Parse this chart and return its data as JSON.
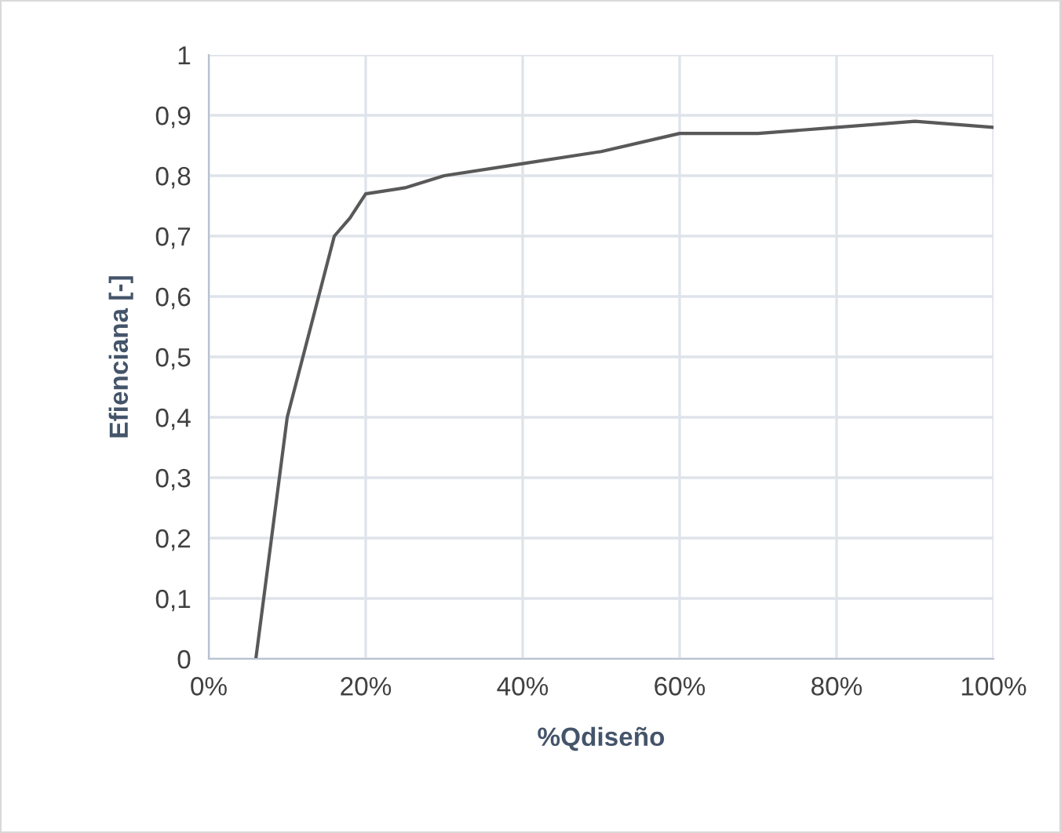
{
  "chart_data": {
    "type": "line",
    "xlabel": "%Qdiseño",
    "ylabel": "Efienciana [-]",
    "x": [
      6,
      10,
      13,
      16,
      18,
      20,
      25,
      30,
      40,
      50,
      60,
      70,
      80,
      90,
      100
    ],
    "series": [
      {
        "color": "#595959",
        "values": [
          0,
          0.4,
          0.55,
          0.7,
          0.73,
          0.77,
          0.78,
          0.8,
          0.82,
          0.84,
          0.87,
          0.87,
          0.88,
          0.89,
          0.88
        ]
      }
    ],
    "xlim": [
      0,
      100
    ],
    "xticks": [
      {
        "value": 0,
        "label": "0%"
      },
      {
        "value": 20,
        "label": "20%"
      },
      {
        "value": 40,
        "label": "40%"
      },
      {
        "value": 60,
        "label": "60%"
      },
      {
        "value": 80,
        "label": "80%"
      },
      {
        "value": 100,
        "label": "100%"
      }
    ],
    "ylim": [
      0,
      1
    ],
    "yticks": [
      0,
      {
        "value": 0.1,
        "label": "0,1"
      },
      {
        "value": 0.2,
        "label": "0,2"
      },
      {
        "value": 0.3,
        "label": "0,3"
      },
      {
        "value": 0.4,
        "label": "0,4"
      },
      {
        "value": 0.5,
        "label": "0,5"
      },
      {
        "value": 0.6,
        "label": "0,6"
      },
      {
        "value": 0.7,
        "label": "0,7"
      },
      {
        "value": 0.8,
        "label": "0,8"
      },
      {
        "value": 0.9,
        "label": "0,9"
      },
      1
    ],
    "grid": true,
    "marker": "none",
    "line_style": "solid",
    "legend": false
  }
}
